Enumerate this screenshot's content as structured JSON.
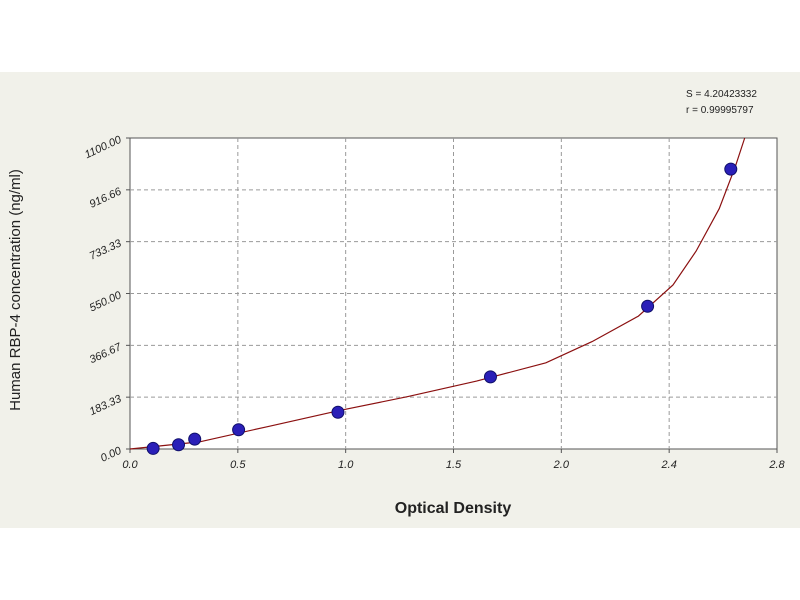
{
  "chart_data": {
    "type": "scatter",
    "title": "",
    "xlabel": "Optical Density",
    "ylabel": "Human RBP-4 concentration (ng/ml)",
    "xlim": [
      0,
      2.8
    ],
    "ylim": [
      0,
      1100
    ],
    "x_ticks": [
      "0.0",
      "0.5",
      "1.0",
      "1.5",
      "2.0",
      "2.4",
      "2.8"
    ],
    "y_ticks": [
      "0.00",
      "183.33",
      "366.67",
      "550.00",
      "733.33",
      "916.66",
      "1100.00"
    ],
    "grid": true,
    "points": {
      "x": [
        0.1,
        0.21,
        0.28,
        0.47,
        0.9,
        1.56,
        2.24,
        2.6
      ],
      "y": [
        2,
        15,
        35,
        68,
        130,
        255,
        505,
        990
      ]
    },
    "fit_curve": {
      "name": "",
      "x": [
        0.0,
        0.3,
        0.6,
        0.9,
        1.2,
        1.5,
        1.8,
        2.0,
        2.2,
        2.35,
        2.45,
        2.55,
        2.62,
        2.66
      ],
      "y": [
        0,
        25,
        80,
        135,
        185,
        240,
        305,
        380,
        470,
        580,
        700,
        850,
        1000,
        1100
      ]
    },
    "colors": {
      "point_fill": "#2a1fb8",
      "point_stroke": "#10106a",
      "curve": "#8b1010",
      "grid": "#9a9a9a",
      "plot_bg": "#ffffff",
      "panel_bg": "#f1f1ea"
    },
    "annotations": [
      "S = 4.20423332",
      "r = 0.99995797"
    ]
  }
}
